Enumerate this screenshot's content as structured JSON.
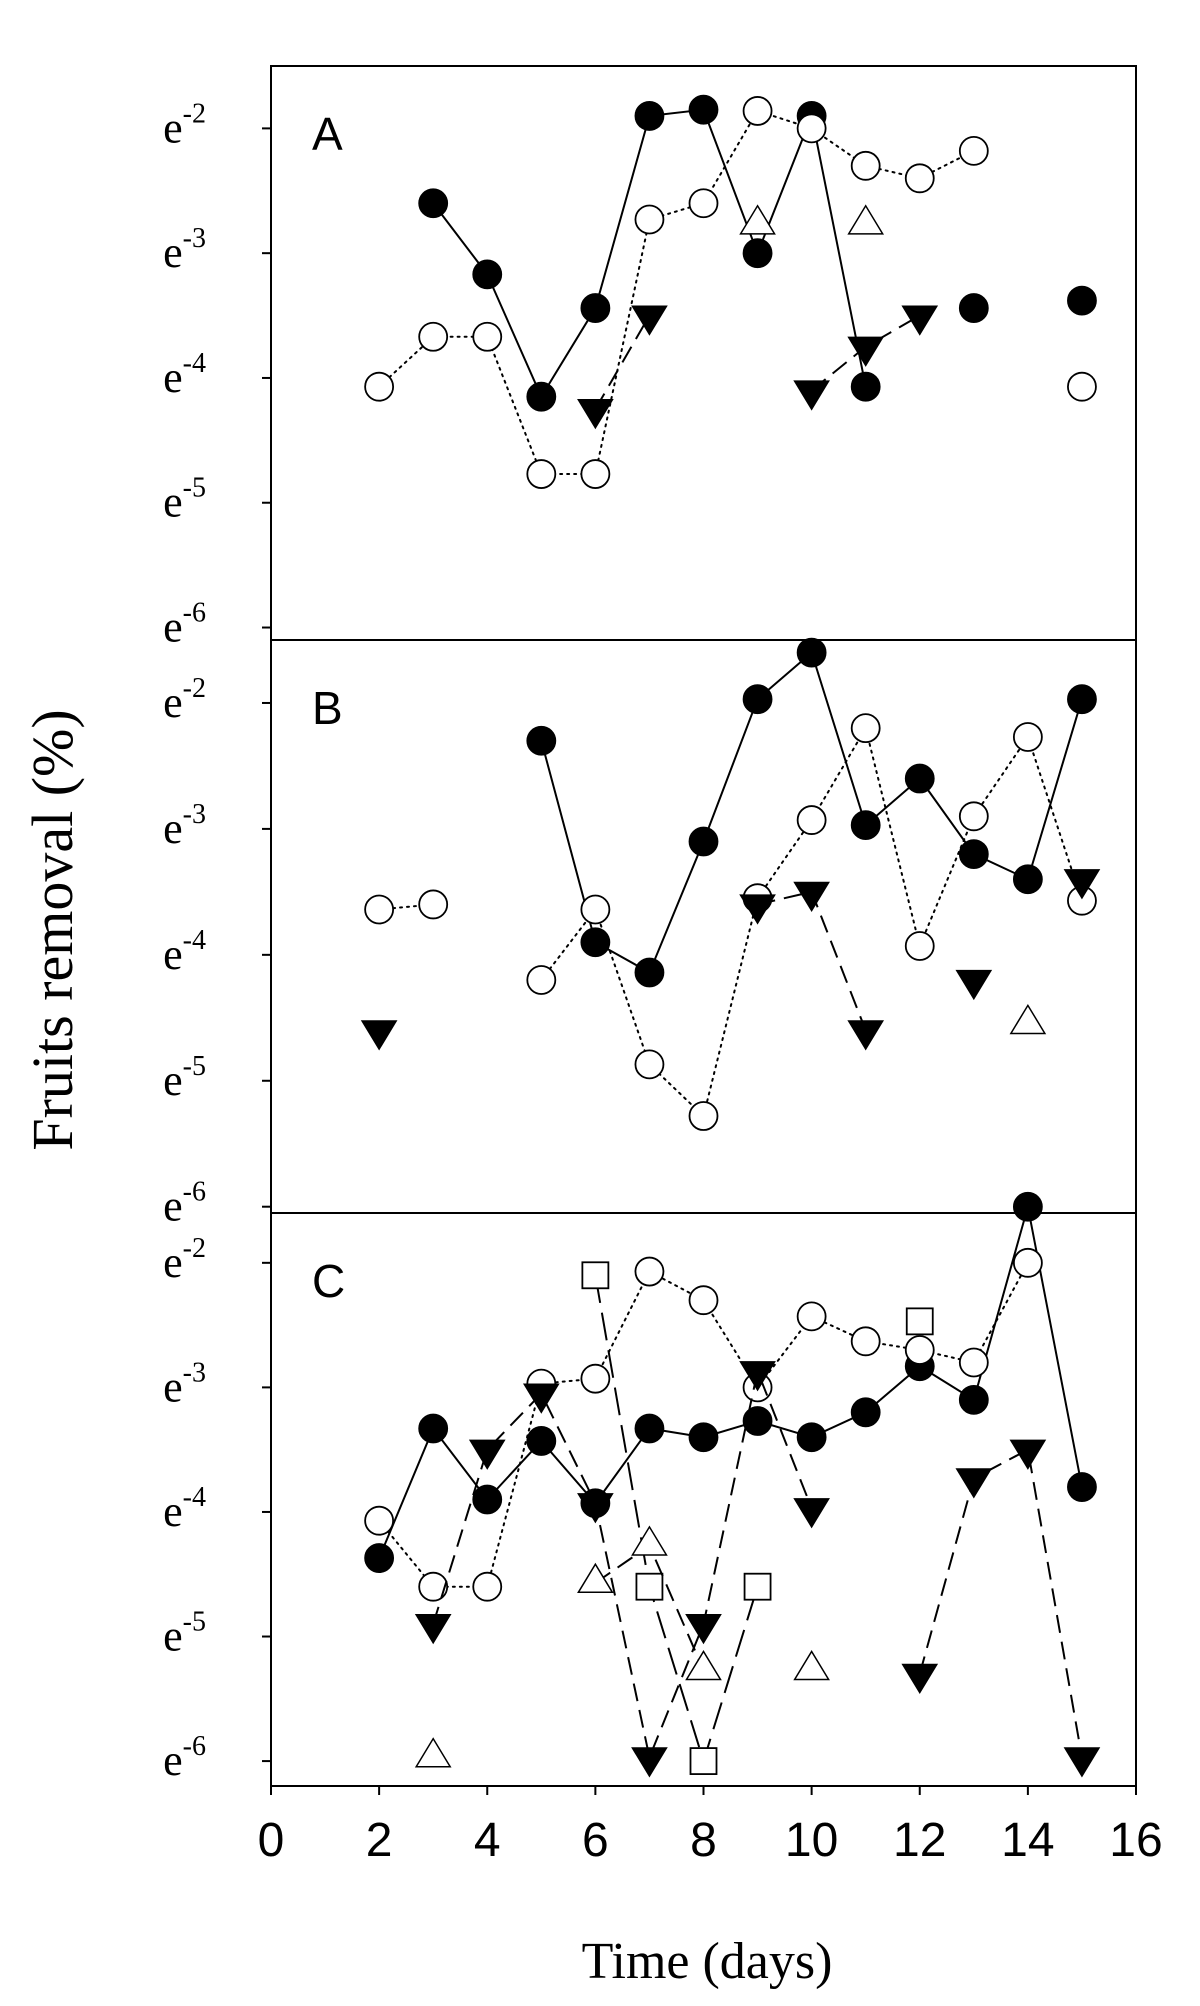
{
  "figure": {
    "ylabel": "Fruits removal (%)",
    "xlabel": "Time (days)"
  },
  "chart_data": [
    {
      "type": "line",
      "panel_label": "A",
      "xlim": [
        0,
        16
      ],
      "ylim": [
        -6.1,
        -1.5
      ],
      "y_tick_values": [
        -2,
        -3,
        -4,
        -5,
        -6
      ],
      "y_tick_base": "e",
      "y_tick_exponents": [
        "-2",
        "-3",
        "-4",
        "-5",
        "-6"
      ],
      "series": [
        {
          "marker": "filled-circle",
          "line": "solid",
          "segments": [
            [
              [
                3,
                -2.6
              ],
              [
                4,
                -3.17
              ],
              [
                5,
                -4.15
              ],
              [
                6,
                -3.44
              ],
              [
                7,
                -1.9
              ],
              [
                8,
                -1.85
              ],
              [
                9,
                -3.0
              ],
              [
                10,
                -1.9
              ],
              [
                11,
                -4.07
              ]
            ],
            [
              [
                13,
                -3.44
              ]
            ],
            [
              [
                15,
                -3.38
              ]
            ]
          ]
        },
        {
          "marker": "open-circle",
          "line": "dotted",
          "segments": [
            [
              [
                2,
                -4.07
              ],
              [
                3,
                -3.67
              ],
              [
                4,
                -3.67
              ],
              [
                5,
                -4.77
              ],
              [
                6,
                -4.77
              ],
              [
                7,
                -2.73
              ],
              [
                8,
                -2.6
              ],
              [
                9,
                -1.86
              ],
              [
                10,
                -2.0
              ],
              [
                11,
                -2.3
              ],
              [
                12,
                -2.4
              ],
              [
                13,
                -2.18
              ]
            ],
            [
              [
                15,
                -4.07
              ]
            ]
          ]
        },
        {
          "marker": "filled-triangle-down",
          "line": "dashed",
          "segments": [
            [
              [
                6,
                -4.25
              ],
              [
                7,
                -3.5
              ]
            ],
            [
              [
                10,
                -4.1
              ],
              [
                11,
                -3.75
              ],
              [
                12,
                -3.5
              ]
            ]
          ]
        },
        {
          "marker": "open-triangle-up",
          "line": "none",
          "segments": [
            [
              [
                9,
                -2.77
              ]
            ],
            [
              [
                11,
                -2.77
              ]
            ]
          ]
        }
      ]
    },
    {
      "type": "line",
      "panel_label": "B",
      "xlim": [
        0,
        16
      ],
      "ylim": [
        -6.05,
        -1.5
      ],
      "y_tick_values": [
        -2,
        -3,
        -4,
        -5,
        -6
      ],
      "y_tick_base": "e",
      "y_tick_exponents": [
        "-2",
        "-3",
        "-4",
        "-5",
        "-6"
      ],
      "series": [
        {
          "marker": "filled-circle",
          "line": "solid",
          "segments": [
            [
              [
                5,
                -2.3
              ],
              [
                6,
                -3.9
              ],
              [
                7,
                -4.14
              ],
              [
                8,
                -3.1
              ],
              [
                9,
                -1.97
              ],
              [
                10,
                -1.6
              ],
              [
                11,
                -2.97
              ],
              [
                12,
                -2.6
              ],
              [
                13,
                -3.2
              ],
              [
                14,
                -3.4
              ],
              [
                15,
                -1.97
              ]
            ]
          ]
        },
        {
          "marker": "open-circle",
          "line": "dotted",
          "segments": [
            [
              [
                2,
                -3.64
              ],
              [
                3,
                -3.6
              ]
            ],
            [
              [
                5,
                -4.2
              ],
              [
                6,
                -3.64
              ],
              [
                7,
                -4.87
              ],
              [
                8,
                -5.28
              ],
              [
                9,
                -3.55
              ],
              [
                10,
                -2.93
              ],
              [
                11,
                -2.2
              ],
              [
                12,
                -3.93
              ],
              [
                13,
                -2.9
              ],
              [
                14,
                -2.27
              ],
              [
                15,
                -3.57
              ]
            ]
          ]
        },
        {
          "marker": "filled-triangle-down",
          "line": "dashed",
          "segments": [
            [
              [
                2,
                -4.6
              ]
            ],
            [
              [
                9,
                -3.6
              ],
              [
                10,
                -3.5
              ],
              [
                11,
                -4.6
              ]
            ],
            [
              [
                13,
                -4.2
              ]
            ],
            [
              [
                15,
                -3.4
              ]
            ]
          ]
        },
        {
          "marker": "open-triangle-up",
          "line": "none",
          "segments": [
            [
              [
                14,
                -4.55
              ]
            ]
          ]
        }
      ]
    },
    {
      "type": "line",
      "panel_label": "C",
      "xlim": [
        0,
        16
      ],
      "ylim": [
        -6.2,
        -1.6
      ],
      "y_tick_values": [
        -2,
        -3,
        -4,
        -5,
        -6
      ],
      "y_tick_base": "e",
      "y_tick_exponents": [
        "-2",
        "-3",
        "-4",
        "-5",
        "-6"
      ],
      "series": [
        {
          "marker": "filled-circle",
          "line": "solid",
          "segments": [
            [
              [
                2,
                -4.37
              ],
              [
                3,
                -3.33
              ],
              [
                4,
                -3.9
              ],
              [
                5,
                -3.43
              ],
              [
                6,
                -3.93
              ],
              [
                7,
                -3.33
              ],
              [
                8,
                -3.4
              ],
              [
                9,
                -3.27
              ],
              [
                10,
                -3.4
              ],
              [
                11,
                -3.2
              ],
              [
                12,
                -2.83
              ],
              [
                13,
                -3.1
              ],
              [
                14,
                -1.55
              ],
              [
                15,
                -3.8
              ]
            ]
          ]
        },
        {
          "marker": "open-circle",
          "line": "dotted",
          "segments": [
            [
              [
                2,
                -4.07
              ],
              [
                3,
                -4.6
              ],
              [
                4,
                -4.6
              ],
              [
                5,
                -2.97
              ],
              [
                6,
                -2.93
              ],
              [
                7,
                -2.07
              ],
              [
                8,
                -2.3
              ],
              [
                9,
                -3.0
              ],
              [
                10,
                -2.43
              ],
              [
                11,
                -2.63
              ],
              [
                12,
                -2.7
              ],
              [
                13,
                -2.8
              ],
              [
                14,
                -2.0
              ]
            ]
          ]
        },
        {
          "marker": "filled-triangle-down",
          "line": "dashed",
          "segments": [
            [
              [
                3,
                -4.9
              ],
              [
                4,
                -3.5
              ],
              [
                5,
                -3.05
              ],
              [
                6,
                -3.93
              ],
              [
                7,
                -5.97
              ],
              [
                8,
                -4.9
              ],
              [
                9,
                -2.87
              ],
              [
                10,
                -3.97
              ]
            ],
            [
              [
                12,
                -5.3
              ],
              [
                13,
                -3.73
              ],
              [
                14,
                -3.5
              ],
              [
                15,
                -5.97
              ]
            ]
          ]
        },
        {
          "marker": "open-square",
          "line": "long-dashed",
          "segments": [
            [
              [
                6,
                -2.1
              ],
              [
                7,
                -4.6
              ],
              [
                8,
                -6.0
              ],
              [
                9,
                -4.6
              ]
            ],
            [
              [
                12,
                -2.47
              ]
            ]
          ]
        },
        {
          "marker": "open-triangle-up",
          "line": "dashed",
          "segments": [
            [
              [
                3,
                -5.97
              ]
            ],
            [
              [
                6,
                -4.57
              ],
              [
                7,
                -4.27
              ],
              [
                8,
                -5.27
              ]
            ],
            [
              [
                10,
                -5.27
              ]
            ]
          ]
        }
      ]
    }
  ],
  "x_axis": {
    "ticks": [
      0,
      2,
      4,
      6,
      8,
      10,
      12,
      14,
      16
    ],
    "tick_labels": [
      "0",
      "2",
      "4",
      "6",
      "8",
      "10",
      "12",
      "14",
      "16"
    ]
  }
}
